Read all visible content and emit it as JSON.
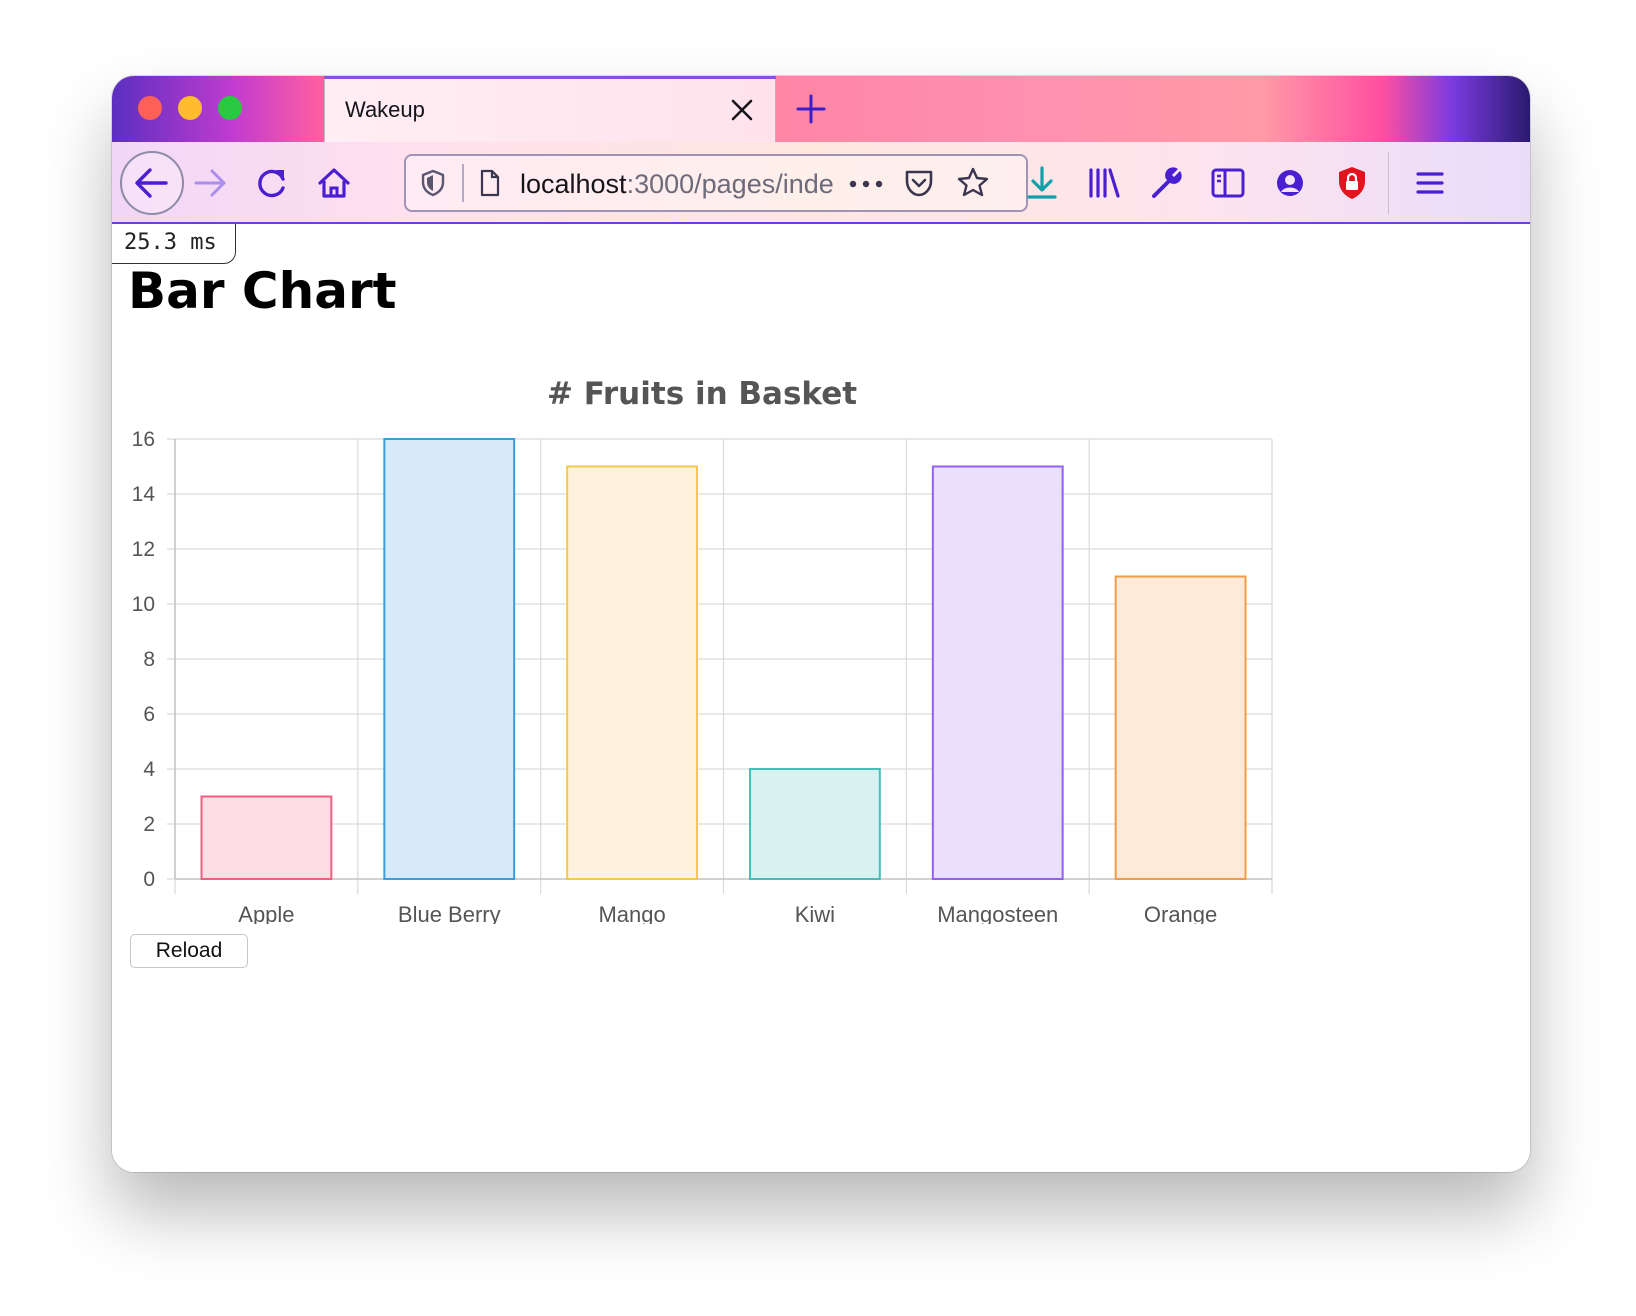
{
  "browser": {
    "tab_title": "Wakeup",
    "url_host": "localhost",
    "url_path": ":3000/pages/inde",
    "colors": {
      "accent": "#6a3fe0",
      "icon": "#4a1fd1",
      "download": "#10a0a8"
    },
    "toolbar_icons": [
      "back-icon",
      "forward-icon",
      "reload-icon",
      "home-icon",
      "tracking-shield-icon",
      "page-icon",
      "more-icon",
      "pocket-icon",
      "bookmark-star-icon",
      "download-icon",
      "library-icon",
      "wrench-icon",
      "sidebar-icon",
      "account-icon",
      "lockwise-icon",
      "menu-icon"
    ]
  },
  "page": {
    "timing": "25.3 ms",
    "title": "Bar Chart",
    "reload_label": "Reload"
  },
  "chart_data": {
    "type": "bar",
    "title": "# Fruits in Basket",
    "categories": [
      "Apple",
      "Blue Berry",
      "Mango",
      "Kiwi",
      "Mangosteen",
      "Orange"
    ],
    "values": [
      3,
      16,
      15,
      4,
      15,
      11
    ],
    "ylim": [
      0,
      16
    ],
    "yticks": [
      0,
      2,
      4,
      6,
      8,
      10,
      12,
      14,
      16
    ],
    "grid": true,
    "legend": "none",
    "colors": {
      "fill": [
        "#ffdde5",
        "#d6eaf9",
        "#fff2dc",
        "#d8f2f2",
        "#ebdffe",
        "#ffead8"
      ],
      "border": [
        "#ee5f82",
        "#3a9de0",
        "#f6c84a",
        "#4bbcbc",
        "#9160f0",
        "#f09b45"
      ]
    }
  }
}
